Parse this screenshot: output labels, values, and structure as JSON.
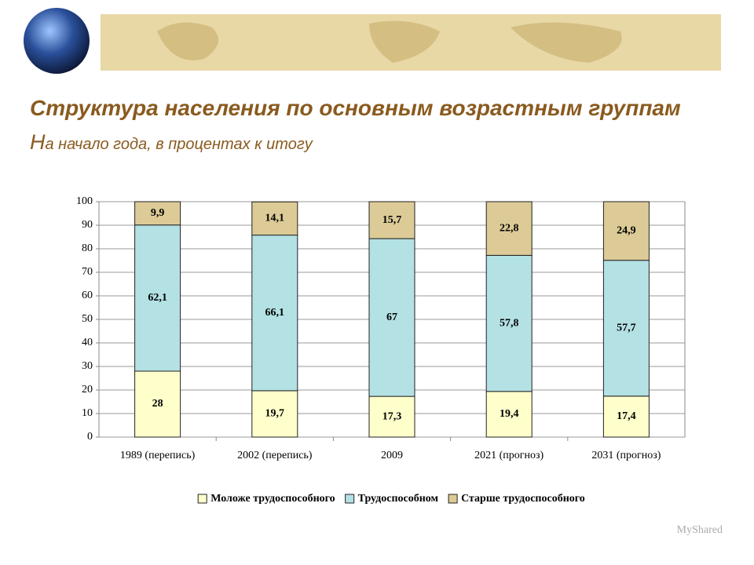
{
  "chart_data": {
    "type": "stacked-bar",
    "title": "Структура населения по основным возрастным группам",
    "subtitle": "На начало года, в процентах к итогу",
    "categories": [
      "1989 (перепись)",
      "2002 (перепись)",
      "2009",
      "2021 (прогноз)",
      "2031 (прогноз)"
    ],
    "series": [
      {
        "name": "Моложе трудоспособного",
        "color": "#ffffcc",
        "values": [
          28,
          19.7,
          17.3,
          19.4,
          17.4
        ],
        "value_labels": [
          "28",
          "19,7",
          "17,3",
          "19,4",
          "17,4"
        ]
      },
      {
        "name": "Трудоспособном",
        "color": "#b4e1e4",
        "values": [
          62.1,
          66.1,
          67,
          57.8,
          57.7
        ],
        "value_labels": [
          "62,1",
          "66,1",
          "67",
          "57,8",
          "57,7"
        ]
      },
      {
        "name": "Старше трудоспособного",
        "color": "#dccb96",
        "values": [
          9.9,
          14.1,
          15.7,
          22.8,
          24.9
        ],
        "value_labels": [
          "9,9",
          "14,1",
          "15,7",
          "22,8",
          "24,9"
        ]
      }
    ],
    "ylim": [
      0,
      100
    ],
    "yticks": [
      0,
      10,
      20,
      30,
      40,
      50,
      60,
      70,
      80,
      90,
      100
    ],
    "grid": true
  },
  "watermark": "MyShared"
}
